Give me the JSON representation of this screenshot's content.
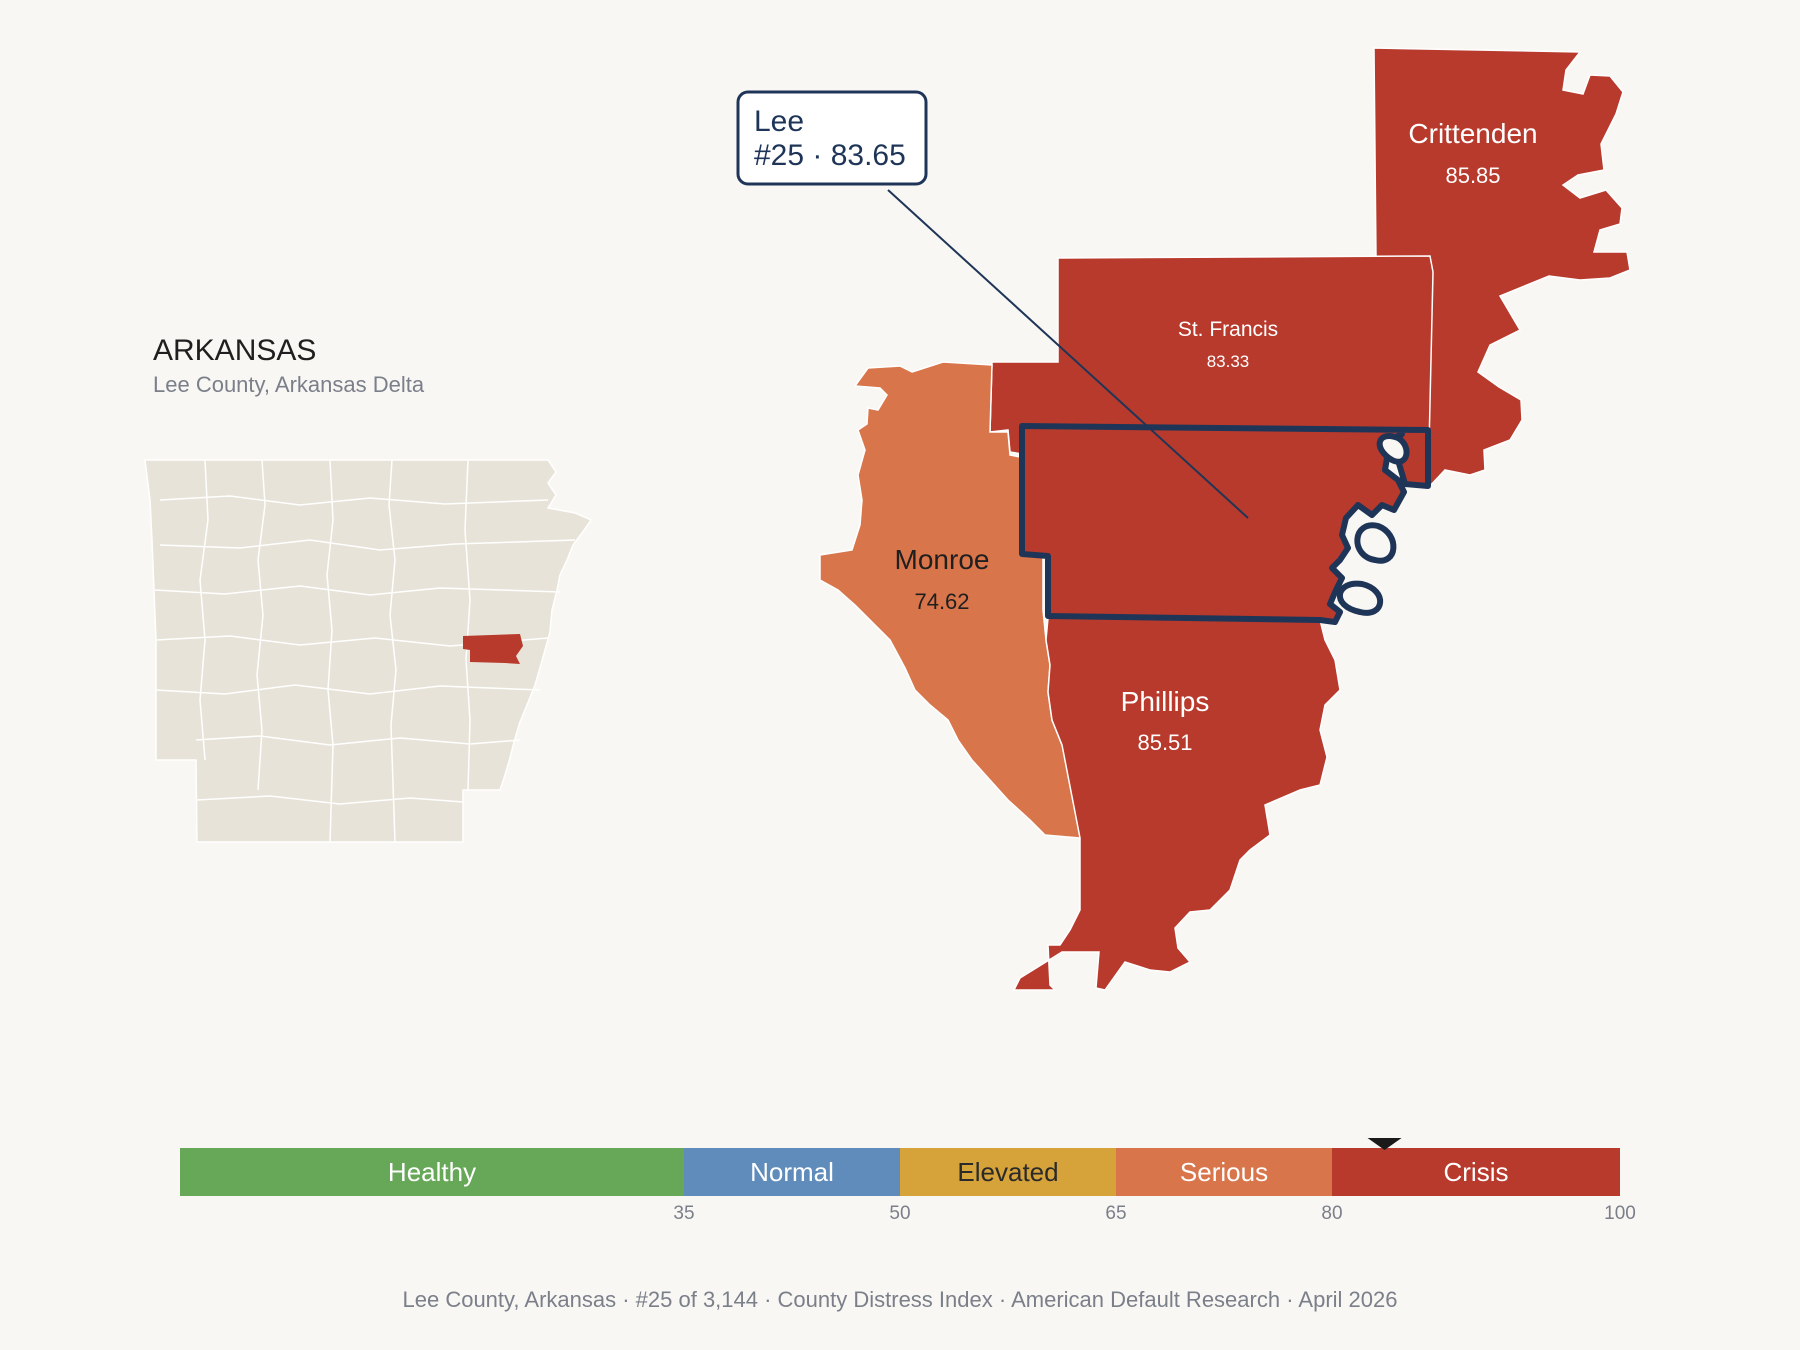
{
  "state_label": {
    "title": "ARKANSAS",
    "subtitle": "Lee County, Arkansas Delta"
  },
  "counties": {
    "crittenden": {
      "name": "Crittenden",
      "value": "85.85",
      "color": "#b83a2c"
    },
    "st_francis": {
      "name": "St. Francis",
      "value": "83.33",
      "color": "#b83a2c"
    },
    "monroe": {
      "name": "Monroe",
      "value": "74.62",
      "color": "#d9754a"
    },
    "phillips": {
      "name": "Phillips",
      "value": "85.51",
      "color": "#b83a2c"
    },
    "lee": {
      "name": "Lee",
      "value": "83.65",
      "color": "#b83a2c"
    }
  },
  "callout": {
    "line1": "Lee",
    "line2": "#25 · 83.65",
    "border_color": "#1f3558"
  },
  "legend": {
    "bands": [
      {
        "label": "Healthy",
        "from": 0,
        "to": 35,
        "color": "#67a758",
        "text_color": "#ffffff"
      },
      {
        "label": "Normal",
        "from": 35,
        "to": 50,
        "color": "#5f8cba",
        "text_color": "#ffffff"
      },
      {
        "label": "Elevated",
        "from": 50,
        "to": 65,
        "color": "#d6a33a",
        "text_color": "#2a2a2a"
      },
      {
        "label": "Serious",
        "from": 65,
        "to": 80,
        "color": "#d9754a",
        "text_color": "#ffffff"
      },
      {
        "label": "Crisis",
        "from": 80,
        "to": 100,
        "color": "#b83a2c",
        "text_color": "#ffffff"
      }
    ],
    "ticks": [
      "35",
      "50",
      "65",
      "80",
      "100"
    ],
    "marker_value": 83.65
  },
  "footer": {
    "items": [
      "Lee County, Arkansas",
      "#25 of 3,144",
      "County Distress Index",
      "American Default Research",
      "April 2026"
    ],
    "separator": "·"
  },
  "colors": {
    "background": "#f9f7f3",
    "state_fill": "#e8e3d8",
    "highlight_outline": "#1f3558"
  }
}
